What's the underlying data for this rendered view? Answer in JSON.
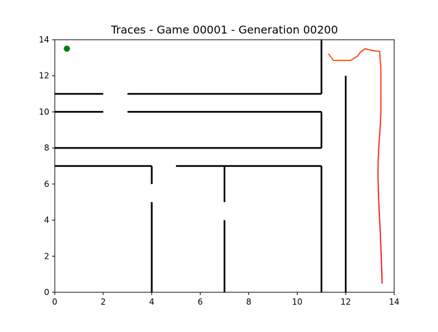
{
  "chart_data": {
    "type": "line",
    "title": "Traces - Game 00001 - Generation 00200",
    "xlabel": "",
    "ylabel": "",
    "xlim": [
      0,
      14
    ],
    "ylim": [
      0,
      14
    ],
    "xticks": [
      0,
      2,
      4,
      6,
      8,
      10,
      12,
      14
    ],
    "yticks": [
      0,
      2,
      4,
      6,
      8,
      10,
      12,
      14
    ],
    "xtick_labels": [
      "0",
      "2",
      "4",
      "6",
      "8",
      "10",
      "12",
      "14"
    ],
    "ytick_labels": [
      "0",
      "2",
      "4",
      "6",
      "8",
      "10",
      "12",
      "14"
    ],
    "grid": false,
    "colors": {
      "walls": "#000000",
      "goal": "#008000",
      "trace_start": "#ff0000",
      "trace_end": "#ff4500"
    },
    "walls": [
      {
        "x": [
          0,
          2
        ],
        "y": [
          11,
          11
        ]
      },
      {
        "x": [
          3,
          11
        ],
        "y": [
          11,
          11
        ]
      },
      {
        "x": [
          0,
          2
        ],
        "y": [
          10,
          10
        ]
      },
      {
        "x": [
          3,
          11
        ],
        "y": [
          10,
          10
        ]
      },
      {
        "x": [
          0,
          11
        ],
        "y": [
          8,
          8
        ]
      },
      {
        "x": [
          0,
          4
        ],
        "y": [
          7,
          7
        ]
      },
      {
        "x": [
          5,
          11
        ],
        "y": [
          7,
          7
        ]
      },
      {
        "x": [
          11,
          11
        ],
        "y": [
          11,
          14
        ]
      },
      {
        "x": [
          11,
          11
        ],
        "y": [
          8,
          10
        ]
      },
      {
        "x": [
          11,
          11
        ],
        "y": [
          0,
          7
        ]
      },
      {
        "x": [
          12,
          12
        ],
        "y": [
          0,
          12
        ]
      },
      {
        "x": [
          4,
          4
        ],
        "y": [
          6,
          7
        ]
      },
      {
        "x": [
          4,
          4
        ],
        "y": [
          0,
          5
        ]
      },
      {
        "x": [
          7,
          7
        ],
        "y": [
          5,
          7
        ]
      },
      {
        "x": [
          7,
          7
        ],
        "y": [
          0,
          4
        ]
      }
    ],
    "goal": {
      "x": 0.5,
      "y": 13.5
    },
    "series": [
      {
        "x": [
          13.5,
          13.48,
          13.45,
          13.42,
          13.38,
          13.35,
          13.33,
          13.34,
          13.38,
          13.43,
          13.45,
          13.45,
          13.45,
          13.45,
          13.45,
          13.42,
          13.4,
          13.1,
          12.8,
          12.6,
          12.5,
          12.2,
          11.9,
          11.5,
          11.3
        ],
        "y": [
          0.5,
          1.5,
          2.5,
          3.5,
          4.5,
          5.5,
          6.5,
          7.4,
          8.4,
          9.3,
          10,
          10.8,
          11.5,
          12,
          12.5,
          12.9,
          13.35,
          13.4,
          13.5,
          13.3,
          13.1,
          12.85,
          12.85,
          12.85,
          13.2
        ]
      }
    ]
  }
}
